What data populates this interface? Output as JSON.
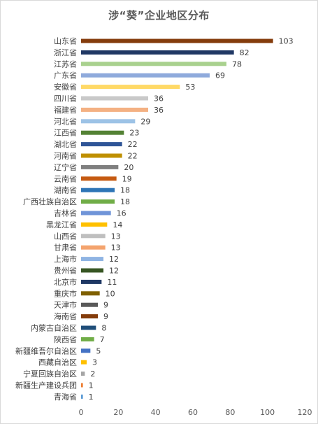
{
  "chart_data": {
    "type": "bar",
    "orientation": "horizontal",
    "title": "涉“葵”企业地区分布",
    "xlim": [
      0,
      120
    ],
    "x_ticks": [
      "0",
      "20",
      "40",
      "60",
      "80",
      "100",
      "120"
    ],
    "grid": false,
    "legend": "none",
    "categories": [
      "山东省",
      "浙江省",
      "江苏省",
      "广东省",
      "安徽省",
      "四川省",
      "福建省",
      "河北省",
      "江西省",
      "湖北省",
      "河南省",
      "辽宁省",
      "云南省",
      "湖南省",
      "广西壮族自治区",
      "吉林省",
      "黑龙江省",
      "山西省",
      "甘肃省",
      "上海市",
      "贵州省",
      "北京市",
      "重庆市",
      "天津市",
      "海南省",
      "内蒙古自治区",
      "陕西省",
      "新疆维吾尔自治区",
      "西藏自治区",
      "宁夏回族自治区",
      "新疆生产建设兵团",
      "青海省"
    ],
    "values": [
      103,
      82,
      78,
      69,
      53,
      36,
      36,
      29,
      23,
      22,
      22,
      20,
      19,
      18,
      18,
      16,
      14,
      13,
      13,
      12,
      12,
      11,
      10,
      9,
      9,
      8,
      7,
      5,
      3,
      2,
      1,
      1
    ],
    "colors": [
      "#843C0C",
      "#203864",
      "#A9D18E",
      "#8FAADC",
      "#FFD966",
      "#C9C9C9",
      "#F4B183",
      "#9DC3E6",
      "#548235",
      "#2F5597",
      "#BF9000",
      "#7F7F7F",
      "#C55A11",
      "#2E75B6",
      "#70AD47",
      "#6F94D8",
      "#FFC000",
      "#BFBFBF",
      "#F4A46E",
      "#8FB4E3",
      "#375623",
      "#1F3864",
      "#7F6000",
      "#595959",
      "#843C0C",
      "#1F4E79",
      "#70AD47",
      "#4472C4",
      "#FFC000",
      "#A5A5A5",
      "#ED7D31",
      "#5B9BD5"
    ]
  }
}
